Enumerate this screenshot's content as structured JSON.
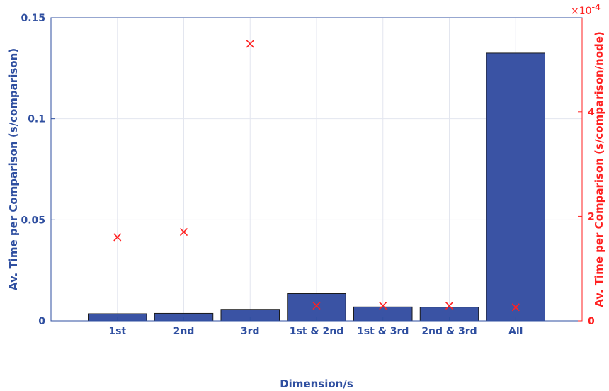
{
  "chart_data": {
    "type": "bar",
    "categories": [
      "1st",
      "2nd",
      "3rd",
      "1st & 2nd",
      "1st & 3rd",
      "2nd & 3rd",
      "All"
    ],
    "xlabel": "Dimension/s",
    "ylabel": "Av. Time per Comparison (s/comparison)",
    "y2label": "Av. Time per Comparison (s/comparison/node)",
    "y2_exponent_label": "×10",
    "y2_exponent_power": "-4",
    "ylim": [
      0,
      0.15
    ],
    "y2lim": [
      0,
      0.00058
    ],
    "yticks": [
      0,
      0.05,
      0.1,
      0.15
    ],
    "ytick_labels": [
      "0",
      "0.05",
      "0.1",
      "0.15"
    ],
    "y2ticks": [
      0,
      0.0002,
      0.0004
    ],
    "y2tick_labels": [
      "0",
      "2",
      "4"
    ],
    "grid": true,
    "colors": {
      "bars": "#3a53a4",
      "bar_edge": "#1a1a1a",
      "markers": "#ff2020",
      "left_axis": "#2f4fa0",
      "right_axis": "#ff2020",
      "grid": "#e3e6ef"
    },
    "series": [
      {
        "kind": "bar",
        "axis": "left",
        "values": [
          0.0035,
          0.0037,
          0.0057,
          0.0135,
          0.0069,
          0.0068,
          0.1325
        ]
      },
      {
        "kind": "scatter",
        "marker": "x",
        "axis": "right",
        "values": [
          0.00016,
          0.00017,
          0.00053,
          2.9e-05,
          2.9e-05,
          2.9e-05,
          2.6e-05
        ]
      }
    ]
  }
}
